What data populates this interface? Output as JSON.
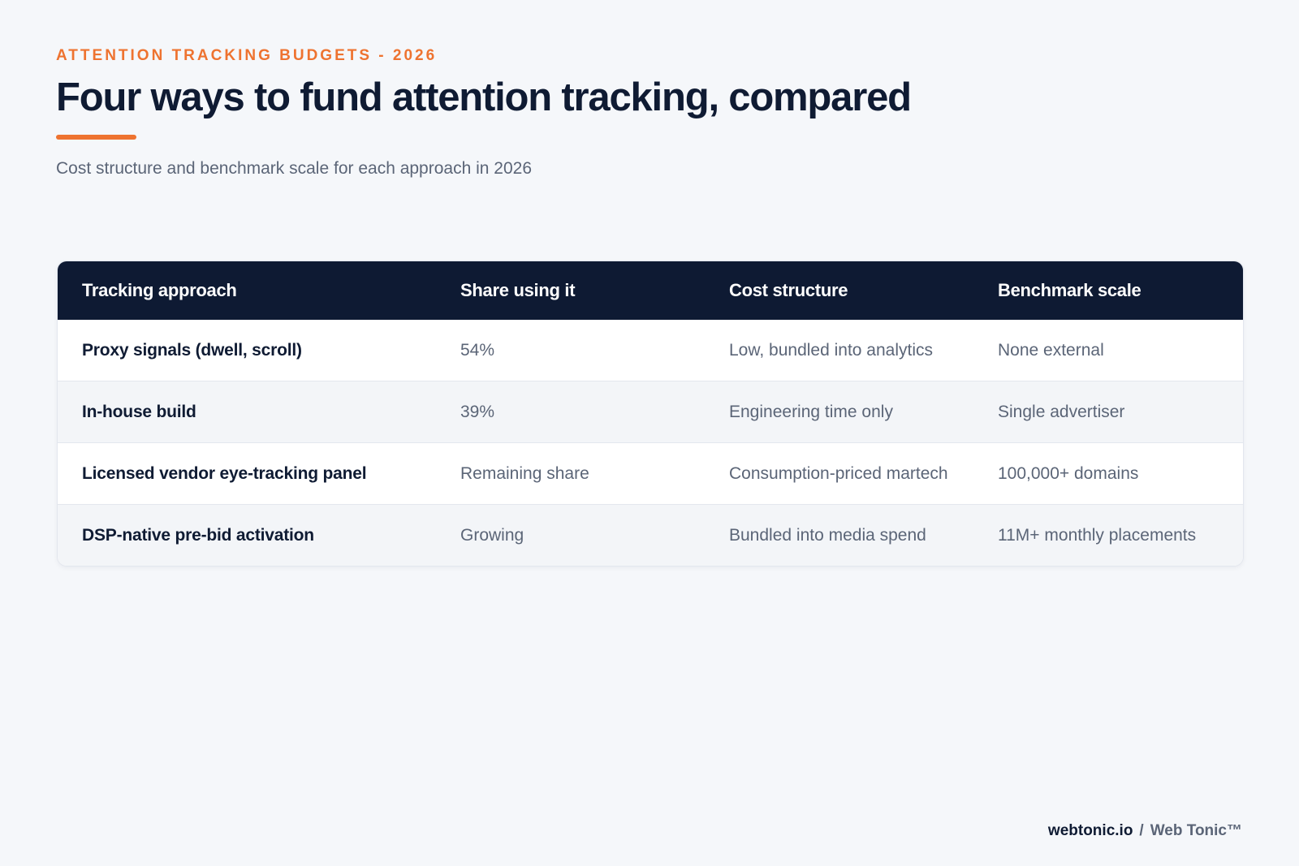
{
  "header": {
    "eyebrow": "ATTENTION TRACKING BUDGETS - 2026",
    "title": "Four ways to fund attention tracking, compared",
    "subtitle": "Cost structure and benchmark scale for each approach in 2026"
  },
  "table": {
    "columns": [
      "Tracking approach",
      "Share using it",
      "Cost structure",
      "Benchmark scale"
    ],
    "rows": [
      {
        "approach": "Proxy signals (dwell, scroll)",
        "share": "54%",
        "cost": "Low, bundled into analytics",
        "scale": "None external"
      },
      {
        "approach": "In-house build",
        "share": "39%",
        "cost": "Engineering time only",
        "scale": "Single advertiser"
      },
      {
        "approach": "Licensed vendor eye-tracking panel",
        "share": "Remaining share",
        "cost": "Consumption-priced martech",
        "scale": "100,000+ domains"
      },
      {
        "approach": "DSP-native pre-bid activation",
        "share": "Growing",
        "cost": "Bundled into media spend",
        "scale": "11M+ monthly placements"
      }
    ]
  },
  "footer": {
    "site": "webtonic.io",
    "separator": "/",
    "brand": "Web Tonic™"
  },
  "colors": {
    "accent": "#ee7330",
    "navy": "#0e1a33",
    "background": "#f5f7fa",
    "muted_text": "#5b6577"
  }
}
